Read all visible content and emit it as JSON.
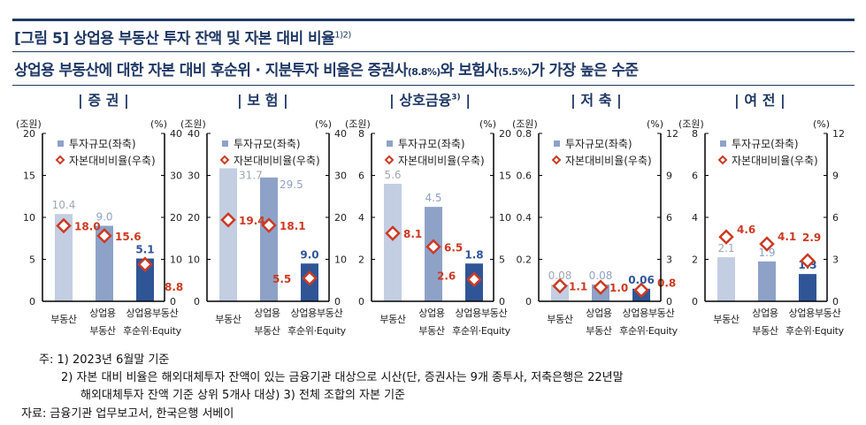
{
  "title": {
    "text": "[그림 5] 상업용 부동산 투자 잔액 및 자본 대비 비율",
    "sup": "1)2)"
  },
  "subtitle": {
    "part1": "상업용 부동산에 대한 자본 대비 후순위 · 지분투자 비율은 증권사",
    "p1": "(8.8%)",
    "part2": "와 보험사",
    "p2": "(5.5%)",
    "part3": "가 가장 높은 수준"
  },
  "colors": {
    "bar1": "#c3cee2",
    "bar2": "#8ea2c8",
    "bar3": "#2f5597",
    "diamond": "#cc3a22",
    "title": "#1f3864"
  },
  "chart_data": [
    {
      "type": "bar",
      "title": "| 증 권 |",
      "title_sup": "",
      "left_unit": "(조원)",
      "right_unit": "(%)",
      "left_ticks": [
        "0",
        "5",
        "10",
        "15",
        "20"
      ],
      "right_ticks": [
        "0",
        "10",
        "20",
        "30",
        "40"
      ],
      "ylim": [
        0,
        20
      ],
      "y2lim": [
        0,
        40
      ],
      "categories": [
        [
          "부동산"
        ],
        [
          "상업용",
          "부동산"
        ],
        [
          "상업용부동산",
          "후순위·Equity"
        ]
      ],
      "series": [
        {
          "name": "투자규모(좌축)",
          "values": [
            10.4,
            9.0,
            5.1
          ],
          "labels": [
            "10.4",
            "9.0",
            "5.1"
          ]
        },
        {
          "name": "자본대비비율(우축)",
          "values": [
            18.0,
            15.6,
            8.8
          ],
          "labels": [
            "18.0",
            "15.6",
            "8.8"
          ]
        }
      ]
    },
    {
      "type": "bar",
      "title": "| 보 험 |",
      "title_sup": "",
      "left_unit": "(조원)",
      "right_unit": "(%)",
      "left_ticks": [
        "0",
        "10",
        "20",
        "30",
        "40"
      ],
      "right_ticks": [
        "0",
        "10",
        "20",
        "30",
        "40"
      ],
      "ylim": [
        0,
        40
      ],
      "y2lim": [
        0,
        40
      ],
      "categories": [
        [
          "부동산"
        ],
        [
          "상업용",
          "부동산"
        ],
        [
          "상업용부동산",
          "후순위·Equity"
        ]
      ],
      "series": [
        {
          "name": "투자규모(좌축)",
          "values": [
            31.7,
            29.5,
            9.0
          ],
          "labels": [
            "31.7",
            "29.5",
            "9.0"
          ]
        },
        {
          "name": "자본대비비율(우축)",
          "values": [
            19.4,
            18.1,
            5.5
          ],
          "labels": [
            "19.4",
            "18.1",
            "5.5"
          ]
        }
      ]
    },
    {
      "type": "bar",
      "title": "| 상호금융",
      "title_sup": "3)",
      "title_end": " |",
      "left_unit": "(조원)",
      "right_unit": "(%)",
      "left_ticks": [
        "0",
        "2",
        "4",
        "6",
        "8"
      ],
      "right_ticks": [
        "0",
        "5",
        "10",
        "15",
        "20"
      ],
      "ylim": [
        0,
        8
      ],
      "y2lim": [
        0,
        20
      ],
      "categories": [
        [
          "부동산"
        ],
        [
          "상업용",
          "부동산"
        ],
        [
          "상업용부동산",
          "후순위·Equity"
        ]
      ],
      "series": [
        {
          "name": "투자규모(좌축)",
          "values": [
            5.6,
            4.5,
            1.8
          ],
          "labels": [
            "5.6",
            "4.5",
            "1.8"
          ]
        },
        {
          "name": "자본대비비율(우축)",
          "values": [
            8.1,
            6.5,
            2.6
          ],
          "labels": [
            "8.1",
            "6.5",
            "2.6"
          ]
        }
      ]
    },
    {
      "type": "bar",
      "title": "| 저 축 |",
      "title_sup": "",
      "left_unit": "(조원)",
      "right_unit": "(%)",
      "left_ticks": [
        "0",
        "0.2",
        "0.4",
        "0.6",
        "0.8"
      ],
      "right_ticks": [
        "0",
        "3",
        "6",
        "9",
        "12"
      ],
      "ylim": [
        0,
        0.8
      ],
      "y2lim": [
        0,
        12
      ],
      "categories": [
        [
          "부동산"
        ],
        [
          "상업용",
          "부동산"
        ],
        [
          "상업용부동산",
          "후순위·Equity"
        ]
      ],
      "series": [
        {
          "name": "투자규모(좌축)",
          "values": [
            0.08,
            0.08,
            0.06
          ],
          "labels": [
            "0.08",
            "0.08",
            "0.06"
          ]
        },
        {
          "name": "자본대비비율(우축)",
          "values": [
            1.1,
            1.0,
            0.8
          ],
          "labels": [
            "1.1",
            "1.0",
            "0.8"
          ]
        }
      ]
    },
    {
      "type": "bar",
      "title": "| 여 전 |",
      "title_sup": "",
      "left_unit": "(조원)",
      "right_unit": "(%)",
      "left_ticks": [
        "0",
        "2",
        "4",
        "6",
        "8"
      ],
      "right_ticks": [
        "0",
        "3",
        "6",
        "9",
        "12"
      ],
      "ylim": [
        0,
        8
      ],
      "y2lim": [
        0,
        12
      ],
      "categories": [
        [
          "부동산"
        ],
        [
          "상업용",
          "부동산"
        ],
        [
          "상업용부동산",
          "후순위·Equity"
        ]
      ],
      "series": [
        {
          "name": "투자규모(좌축)",
          "values": [
            2.1,
            1.9,
            1.3
          ],
          "labels": [
            "2.1",
            "1.9",
            "1.3"
          ]
        },
        {
          "name": "자본대비비율(우축)",
          "values": [
            4.6,
            4.1,
            2.9
          ],
          "labels": [
            "4.6",
            "4.1",
            "2.9"
          ]
        }
      ]
    }
  ],
  "notes": {
    "n1": "주:  1)  2023년  6월말  기준",
    "n2": "2)  자본  대비  비율은  해외대체투자  잔액이  있는  금융기관  대상으로  시산(단,  증권사는  9개  종투사,  저축은행은  22년말",
    "n3": "해외대체투자  잔액  기준  상위  5개사  대상)        3)  전체  조합의  자본  기준",
    "source": "자료:  금융기관  업무보고서,  한국은행  서베이"
  }
}
